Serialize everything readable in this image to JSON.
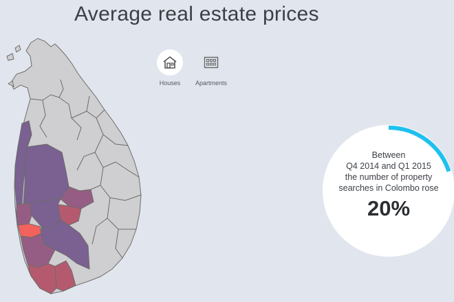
{
  "header": {
    "title": "Average real estate prices"
  },
  "property_toggle": {
    "items": [
      {
        "label": "Houses",
        "icon": "house-icon",
        "active": true
      },
      {
        "label": "Apartments",
        "icon": "apartment-building-icon",
        "active": false
      }
    ]
  },
  "map": {
    "country": "Sri Lanka",
    "colors": {
      "base": "#cfcfd1",
      "border": "#6b6b6b",
      "purple": "#7a6191",
      "mauve": "#965d84",
      "rose": "#b55a6e",
      "highlight": "#f3625d"
    }
  },
  "stat": {
    "lines": [
      "Between",
      "Q4 2014 and Q1 2015",
      "the number of property",
      "searches in Colombo rose"
    ],
    "value": "20%",
    "progress_fraction": 0.2,
    "accent_color": "#1ec1ee"
  }
}
